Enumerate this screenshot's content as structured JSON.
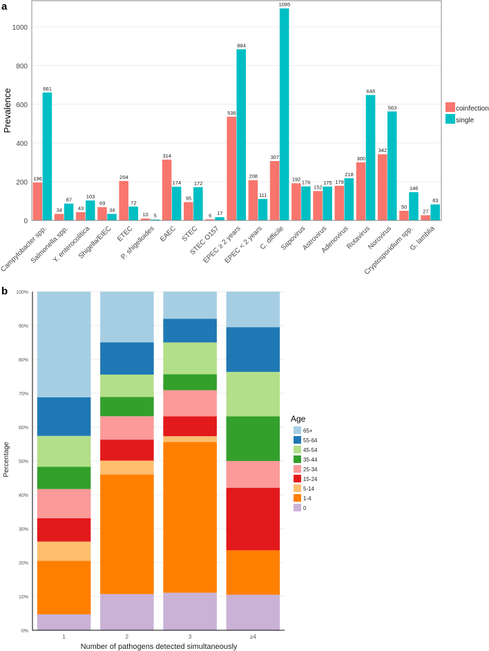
{
  "chart_data": [
    {
      "panel_label": "a",
      "type": "bar",
      "title": "",
      "xlabel": "",
      "ylabel": "Prevalence",
      "ylim": [
        0,
        1135
      ],
      "yticks": [
        0,
        200,
        400,
        600,
        800,
        1000
      ],
      "legend_position": "right",
      "categories": [
        "Campylobacter spp.",
        "Salmonella spp.",
        "Y. enterocolitica",
        "Shigella/EIEC",
        "ETEC",
        "P. shigelloides",
        "EAEC",
        "STEC",
        "STEC O157",
        "EPEC ≥ 2 years",
        "EPEC < 2 years",
        "C. difficile",
        "Sapovirus",
        "Astrovirus",
        "Adenovirus",
        "Rotavirus",
        "Norovirus",
        "Cryptosporidium spp.",
        "G. lamblia"
      ],
      "series": [
        {
          "name": "coinfection",
          "color": "#f8766d",
          "values": [
            196,
            34,
            43,
            69,
            204,
            10,
            314,
            95,
            6,
            536,
            208,
            307,
            192,
            152,
            179,
            300,
            342,
            50,
            27
          ]
        },
        {
          "name": "single",
          "color": "#00bfc4",
          "values": [
            661,
            87,
            103,
            34,
            72,
            5,
            174,
            172,
            17,
            884,
            111,
            1095,
            176,
            175,
            218,
            648,
            563,
            146,
            83
          ]
        }
      ]
    },
    {
      "panel_label": "b",
      "type": "bar",
      "stacked": true,
      "xlabel": "Number of pathogens detected simultaneously",
      "ylabel": "Percentage",
      "ylim": [
        0,
        100
      ],
      "yticks": [
        "0%",
        "10%",
        "20%",
        "30%",
        "40%",
        "50%",
        "60%",
        "70%",
        "80%",
        "90%",
        "100%"
      ],
      "legend_title": "Age",
      "legend_position": "right",
      "categories": [
        "1",
        "2",
        "3",
        "≥4"
      ],
      "series": [
        {
          "name": "0",
          "color": "#cab2d6",
          "values": [
            4.7,
            10.7,
            11.1,
            10.5
          ]
        },
        {
          "name": "1-4",
          "color": "#ff7f00",
          "values": [
            15.8,
            35.3,
            44.5,
            13.1
          ]
        },
        {
          "name": "5-14",
          "color": "#fdbf6f",
          "values": [
            5.7,
            4.1,
            1.7,
            0
          ]
        },
        {
          "name": "15-24",
          "color": "#e31a1c",
          "values": [
            6.9,
            6.2,
            5.9,
            18.5
          ]
        },
        {
          "name": "25-34",
          "color": "#fb9a99",
          "values": [
            8.6,
            6.9,
            7.7,
            7.9
          ]
        },
        {
          "name": "35-44",
          "color": "#33a02c",
          "values": [
            6.6,
            5.7,
            4.7,
            13.2
          ]
        },
        {
          "name": "45-54",
          "color": "#b2df8a",
          "values": [
            9.1,
            6.6,
            9.4,
            13.1
          ]
        },
        {
          "name": "55-64",
          "color": "#1f78b4",
          "values": [
            11.4,
            9.5,
            7.0,
            13.2
          ]
        },
        {
          "name": "65+",
          "color": "#a6cee3",
          "values": [
            31.2,
            15.0,
            8.0,
            10.5
          ]
        }
      ]
    }
  ]
}
